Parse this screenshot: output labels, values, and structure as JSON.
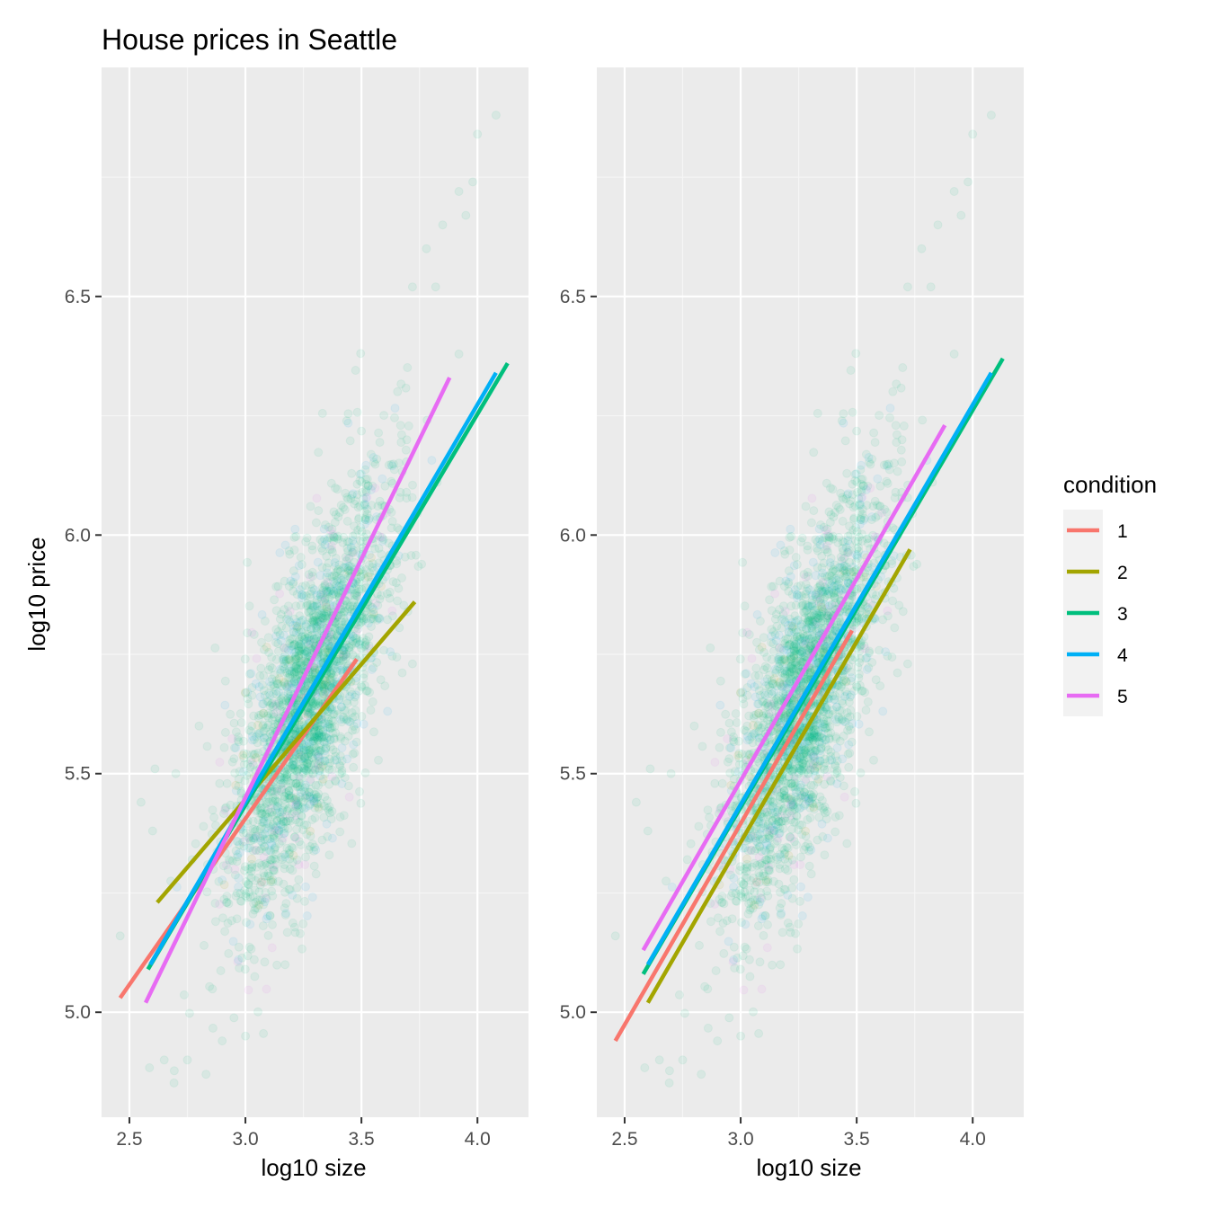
{
  "chart_data": {
    "type": "scatter",
    "title": "House prices in Seattle",
    "ylabel": "log10 price",
    "panels": [
      {
        "xlabel": "log10 size",
        "xlim": [
          2.38,
          4.22
        ],
        "ylim": [
          4.78,
          6.98
        ],
        "xticks": [
          2.5,
          3.0,
          3.5,
          4.0
        ],
        "xtick_labels": [
          "2.5",
          "3.0",
          "3.5",
          "4.0"
        ],
        "yticks": [
          5.0,
          5.5,
          6.0,
          6.5
        ],
        "ytick_labels": [
          "5.0",
          "5.5",
          "6.0",
          "6.5"
        ],
        "fitted_lines": [
          {
            "condition": "1",
            "x": [
              2.46,
              3.48
            ],
            "y": [
              5.03,
              5.74
            ]
          },
          {
            "condition": "2",
            "x": [
              2.62,
              3.73
            ],
            "y": [
              5.23,
              5.86
            ]
          },
          {
            "condition": "3",
            "x": [
              2.58,
              4.13
            ],
            "y": [
              5.09,
              6.36
            ]
          },
          {
            "condition": "4",
            "x": [
              2.59,
              4.08
            ],
            "y": [
              5.1,
              6.34
            ]
          },
          {
            "condition": "5",
            "x": [
              2.57,
              3.88
            ],
            "y": [
              5.02,
              6.33
            ]
          }
        ]
      },
      {
        "xlabel": "log10 size",
        "xlim": [
          2.38,
          4.22
        ],
        "ylim": [
          4.78,
          6.98
        ],
        "xticks": [
          2.5,
          3.0,
          3.5,
          4.0
        ],
        "xtick_labels": [
          "2.5",
          "3.0",
          "3.5",
          "4.0"
        ],
        "yticks": [
          5.0,
          5.5,
          6.0,
          6.5
        ],
        "ytick_labels": [
          "5.0",
          "5.5",
          "6.0",
          "6.5"
        ],
        "fitted_lines": [
          {
            "condition": "1",
            "x": [
              2.46,
              3.48
            ],
            "y": [
              4.94,
              5.8
            ]
          },
          {
            "condition": "2",
            "x": [
              2.6,
              3.73
            ],
            "y": [
              5.02,
              5.97
            ]
          },
          {
            "condition": "3",
            "x": [
              2.58,
              4.13
            ],
            "y": [
              5.08,
              6.37
            ]
          },
          {
            "condition": "4",
            "x": [
              2.6,
              4.08
            ],
            "y": [
              5.1,
              6.34
            ]
          },
          {
            "condition": "5",
            "x": [
              2.58,
              3.88
            ],
            "y": [
              5.13,
              6.23
            ]
          }
        ]
      }
    ],
    "scatter_cloud": {
      "description_values": {
        "x_center": 3.27,
        "y_center": 5.65,
        "x_sd": 0.17,
        "y_sd": 0.22,
        "correlation": 0.72,
        "n_points": 2600,
        "opacity": 0.08
      },
      "extreme_points": [
        {
          "x": 4.08,
          "y": 6.88
        },
        {
          "x": 4.0,
          "y": 6.84
        },
        {
          "x": 3.98,
          "y": 6.74
        },
        {
          "x": 3.92,
          "y": 6.72
        },
        {
          "x": 3.85,
          "y": 6.65
        },
        {
          "x": 3.78,
          "y": 6.6
        },
        {
          "x": 3.72,
          "y": 6.52
        },
        {
          "x": 3.95,
          "y": 6.67
        },
        {
          "x": 3.82,
          "y": 6.52
        },
        {
          "x": 2.46,
          "y": 5.16
        },
        {
          "x": 2.55,
          "y": 5.44
        },
        {
          "x": 2.61,
          "y": 5.51
        },
        {
          "x": 2.6,
          "y": 5.38
        },
        {
          "x": 2.75,
          "y": 4.9
        },
        {
          "x": 2.83,
          "y": 4.87
        },
        {
          "x": 2.9,
          "y": 4.94
        },
        {
          "x": 2.65,
          "y": 4.9
        },
        {
          "x": 3.0,
          "y": 4.95
        },
        {
          "x": 3.48,
          "y": 5.78
        },
        {
          "x": 3.72,
          "y": 5.73
        },
        {
          "x": 3.7,
          "y": 5.84
        },
        {
          "x": 3.65,
          "y": 5.9
        },
        {
          "x": 2.7,
          "y": 5.5
        },
        {
          "x": 2.8,
          "y": 5.6
        }
      ]
    },
    "legend": {
      "title": "condition",
      "position": "right",
      "entries": [
        {
          "label": "1",
          "color": "#F8766D"
        },
        {
          "label": "2",
          "color": "#A3A500"
        },
        {
          "label": "3",
          "color": "#00BF7D"
        },
        {
          "label": "4",
          "color": "#00B0F6"
        },
        {
          "label": "5",
          "color": "#E76BF3"
        }
      ]
    },
    "colors": {
      "panel_background": "#EBEBEB",
      "grid_major": "#FFFFFF",
      "grid_minor": "#F5F5F5",
      "point_color": "#00BF7D"
    },
    "grid": true
  }
}
